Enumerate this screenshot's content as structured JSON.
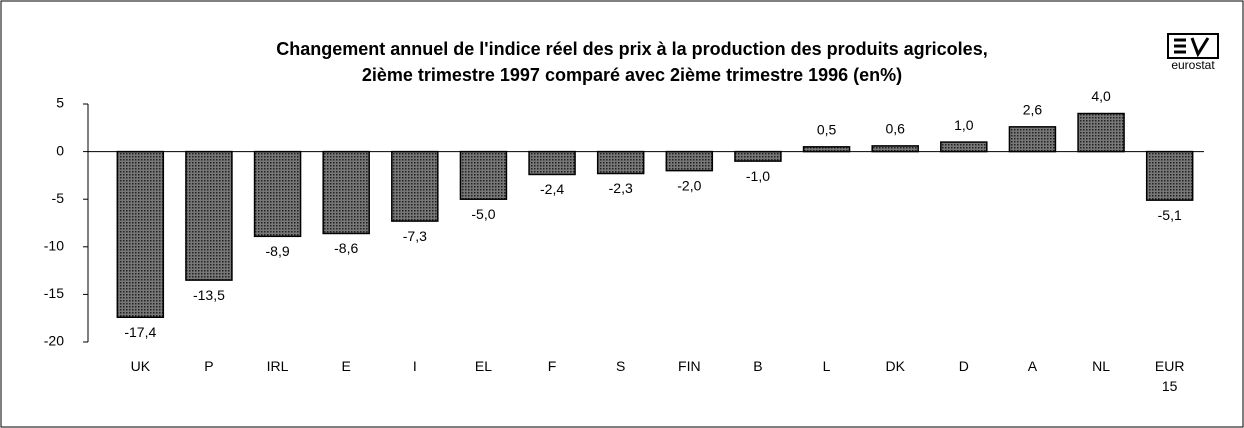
{
  "chart_data": {
    "type": "bar",
    "title": "Changement annuel de l'indice réel des prix à la production des produits agricoles,",
    "subtitle": "2ième trimestre 1997 comparé avec 2ième trimestre 1996 (en%)",
    "logo_text": "eurostat",
    "categories": [
      "UK",
      "P",
      "IRL",
      "E",
      "I",
      "EL",
      "F",
      "S",
      "FIN",
      "B",
      "L",
      "DK",
      "D",
      "A",
      "NL",
      "EUR 15"
    ],
    "values": [
      -17.4,
      -13.5,
      -8.9,
      -8.6,
      -7.3,
      -5.0,
      -2.4,
      -2.3,
      -2.0,
      -1.0,
      0.5,
      0.6,
      1.0,
      2.6,
      4.0,
      -5.1
    ],
    "value_labels": [
      "-17,4",
      "-13,5",
      "-8,9",
      "-8,6",
      "-7,3",
      "-5,0",
      "-2,4",
      "-2,3",
      "-2,0",
      "-1,0",
      "0,5",
      "0,6",
      "1,0",
      "2,6",
      "4,0",
      "-5,1"
    ],
    "color": "#5a5a5a",
    "ylim": [
      -20,
      5
    ],
    "yticks": [
      5,
      0,
      -5,
      -10,
      -15,
      -20
    ],
    "grid": false
  }
}
